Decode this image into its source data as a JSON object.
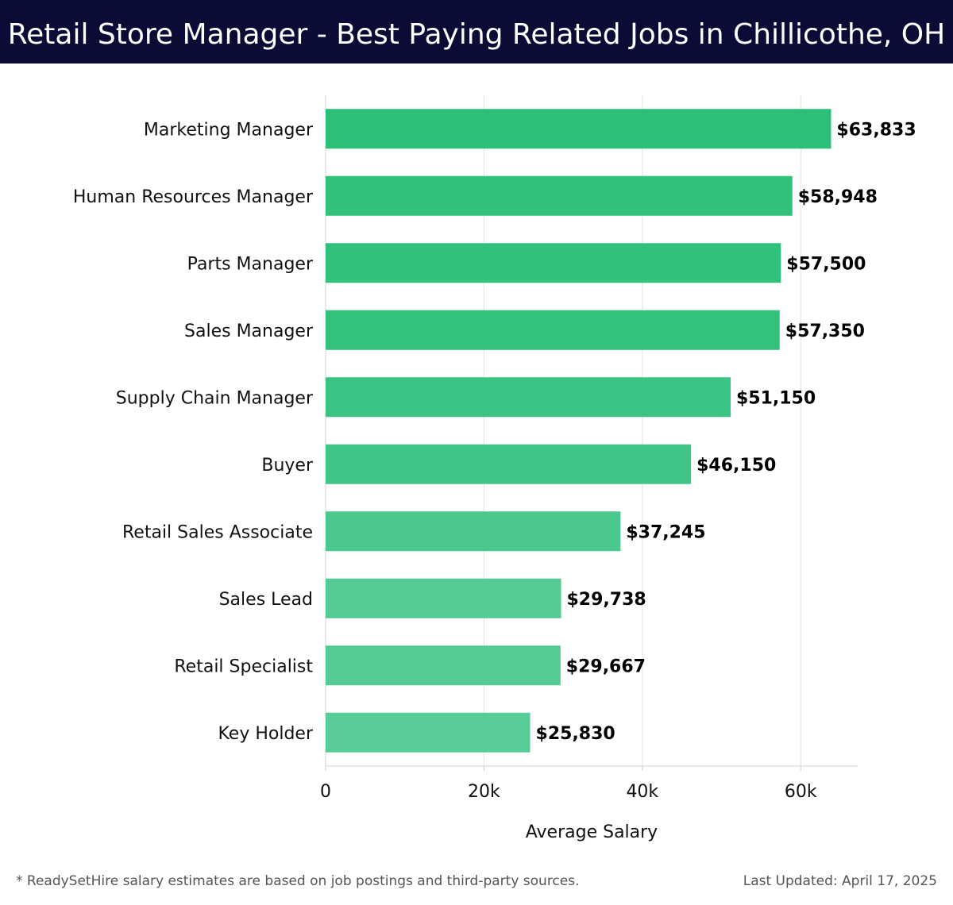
{
  "header": {
    "title": "Retail Store Manager - Best Paying Related Jobs in Chillicothe, OH",
    "background": "#0b0c36"
  },
  "chart_data": {
    "type": "bar",
    "orientation": "horizontal",
    "categories": [
      "Marketing Manager",
      "Human Resources Manager",
      "Parts Manager",
      "Sales Manager",
      "Supply Chain Manager",
      "Buyer",
      "Retail Sales Associate",
      "Sales Lead",
      "Retail Specialist",
      "Key Holder"
    ],
    "values": [
      63833,
      58948,
      57500,
      57350,
      51150,
      46150,
      37245,
      29738,
      29667,
      25830
    ],
    "value_labels": [
      "$63,833",
      "$58,948",
      "$57,500",
      "$57,350",
      "$51,150",
      "$46,150",
      "$37,245",
      "$29,738",
      "$29,667",
      "$25,830"
    ],
    "xlabel": "Average Salary",
    "ylabel": "",
    "xlim": [
      0,
      67200
    ],
    "xticks": [
      0,
      20000,
      40000,
      60000
    ],
    "xtick_labels": [
      "0",
      "20k",
      "40k",
      "60k"
    ],
    "grid": "vertical",
    "bar_color_max": "#2bbf78",
    "bar_color_min": "#58cc96"
  },
  "footer": {
    "note": "* ReadySetHire salary estimates are based on job postings and third-party sources.",
    "updated": "Last Updated: April 17, 2025"
  }
}
